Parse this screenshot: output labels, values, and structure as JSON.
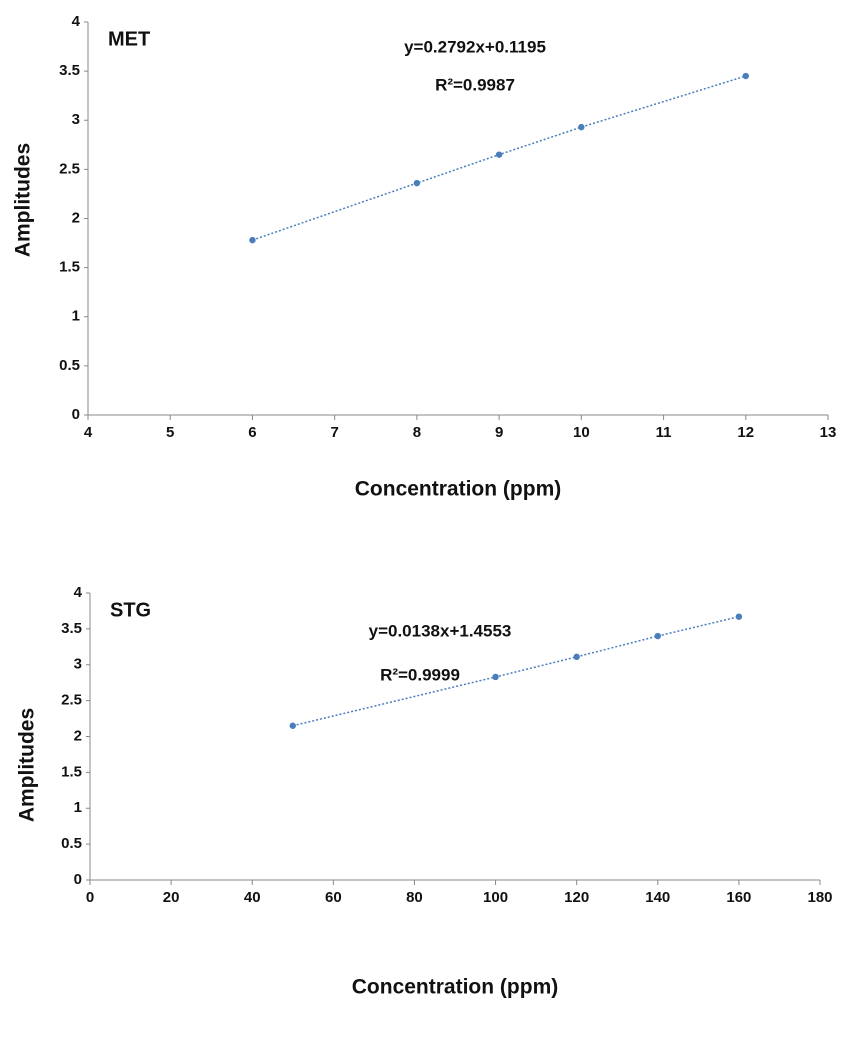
{
  "chart_data": [
    {
      "type": "scatter",
      "title": "MET",
      "annotations": [
        "y=0.2792x+0.1195",
        "R²=0.9987"
      ],
      "x_label": "Concentration (ppm)",
      "y_label": "Amplitudes",
      "x": [
        6,
        8,
        9,
        10,
        12
      ],
      "values": [
        1.78,
        2.36,
        2.65,
        2.93,
        3.45
      ],
      "color": "#4a7ebb",
      "trendline": true,
      "xlim": [
        4,
        13
      ],
      "xticks": [
        4,
        5,
        6,
        7,
        8,
        9,
        10,
        11,
        12,
        13
      ],
      "ylim": [
        0,
        4
      ],
      "yticks": [
        0,
        0.5,
        1,
        1.5,
        2,
        2.5,
        3,
        3.5,
        4
      ],
      "grid": false
    },
    {
      "type": "scatter",
      "title": "STG",
      "annotations": [
        "y=0.0138x+1.4553",
        "R²=0.9999"
      ],
      "x_label": "Concentration (ppm)",
      "y_label": "Amplitudes",
      "x": [
        50,
        100,
        120,
        140,
        160
      ],
      "values": [
        2.15,
        2.83,
        3.11,
        3.4,
        3.67
      ],
      "color": "#4a7ebb",
      "trendline": true,
      "xlim": [
        0,
        180
      ],
      "xticks": [
        0,
        20,
        40,
        60,
        80,
        100,
        120,
        140,
        160,
        180
      ],
      "ylim": [
        0,
        4
      ],
      "yticks": [
        0,
        0.5,
        1,
        1.5,
        2,
        2.5,
        3,
        3.5,
        4
      ],
      "grid": false
    }
  ]
}
